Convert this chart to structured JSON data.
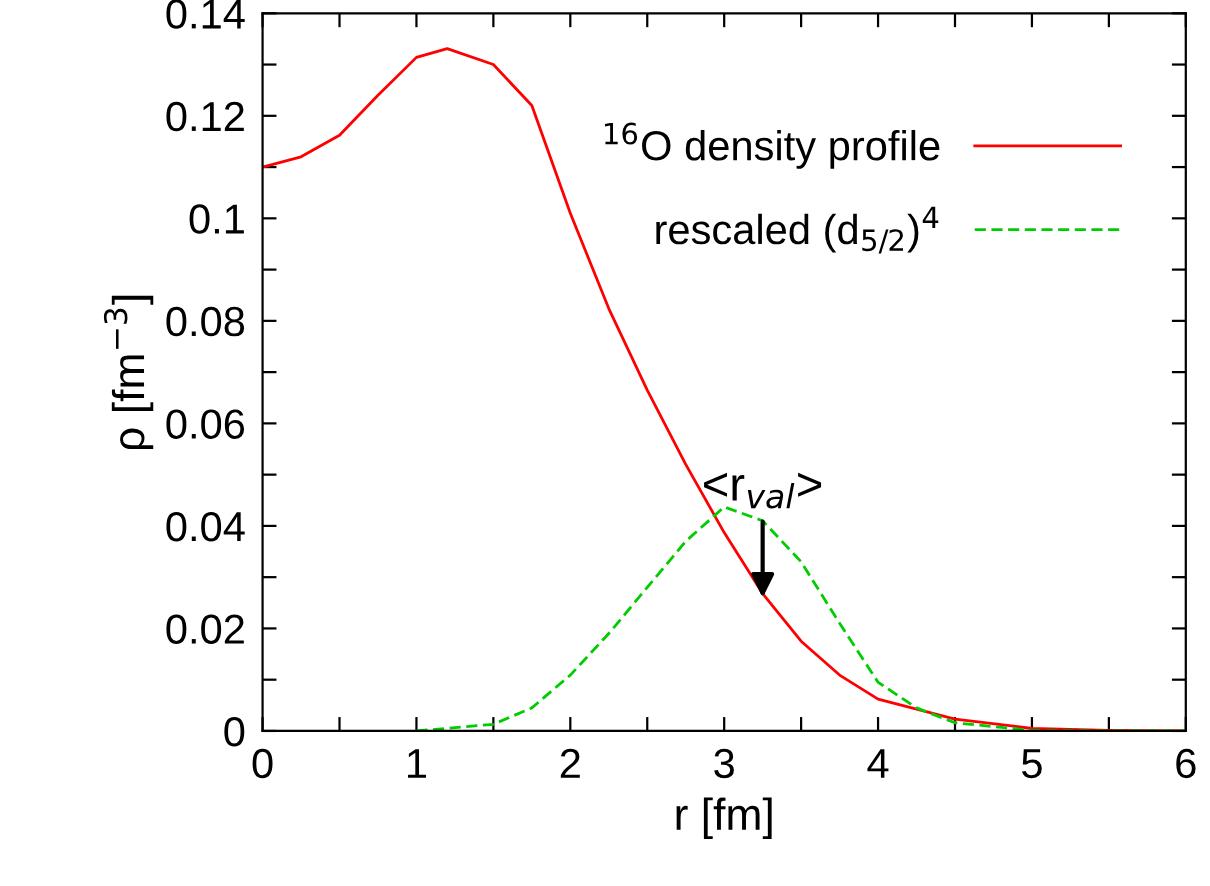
{
  "chart_data": {
    "type": "line",
    "xlabel": "r [fm]",
    "ylabel": "ρ [fm$^{−3}$]",
    "xlim": [
      0,
      6
    ],
    "ylim": [
      0,
      0.14
    ],
    "xticks": [
      0,
      {
        "value": 0.5,
        "label": null
      },
      1,
      {
        "value": 1.5,
        "label": null
      },
      2,
      {
        "value": 2.5,
        "label": null
      },
      3,
      {
        "value": 3.5,
        "label": null
      },
      4,
      {
        "value": 4.5,
        "label": null
      },
      5,
      {
        "value": 5.5,
        "label": null
      },
      6
    ],
    "yticks": [
      0,
      {
        "value": 0.01,
        "label": null
      },
      0.02,
      {
        "value": 0.03,
        "label": null
      },
      0.04,
      {
        "value": 0.05,
        "label": null
      },
      0.06,
      {
        "value": 0.07,
        "label": null
      },
      0.08,
      {
        "value": 0.09,
        "label": null
      },
      0.1,
      {
        "value": 0.11,
        "label": null
      },
      0.12,
      {
        "value": 0.13,
        "label": null
      },
      0.14
    ],
    "legend": "top right",
    "grid": false,
    "marker": "none",
    "series": [
      {
        "name": "$^{16}$O density profile",
        "color": "#ff0000",
        "line_style": "solid",
        "x": [
          0,
          0.25,
          0.5,
          0.75,
          1,
          1.2,
          1.5,
          1.75,
          2,
          2.25,
          2.5,
          2.75,
          3,
          3.25,
          3.5,
          3.75,
          4,
          4.5,
          5,
          5.5,
          6
        ],
        "values": [
          0.11,
          0.112,
          0.1162,
          0.124,
          0.1314,
          0.1331,
          0.13,
          0.122,
          0.101,
          0.0824,
          0.0665,
          0.052,
          0.0387,
          0.0268,
          0.0175,
          0.0109,
          0.0062,
          0.0023,
          0.0005,
          0.0001,
          0
        ]
      },
      {
        "name": "rescaled (d$_{5/2}$)$^{4}$",
        "color": "#00cc00",
        "line_style": "dashed",
        "x": [
          1,
          1.5,
          1.75,
          2,
          2.25,
          2.5,
          2.75,
          3,
          3.25,
          3.5,
          3.75,
          4,
          4.25,
          4.5,
          5,
          5.5,
          6
        ],
        "values": [
          0,
          0.0013,
          0.0045,
          0.0109,
          0.019,
          0.028,
          0.037,
          0.0437,
          0.041,
          0.033,
          0.021,
          0.0095,
          0.0045,
          0.0016,
          0.0001,
          0,
          0
        ]
      }
    ],
    "annotations": [
      {
        "text": "<r$_{val}$>",
        "x": 3.25,
        "y": 0.026
      }
    ]
  }
}
